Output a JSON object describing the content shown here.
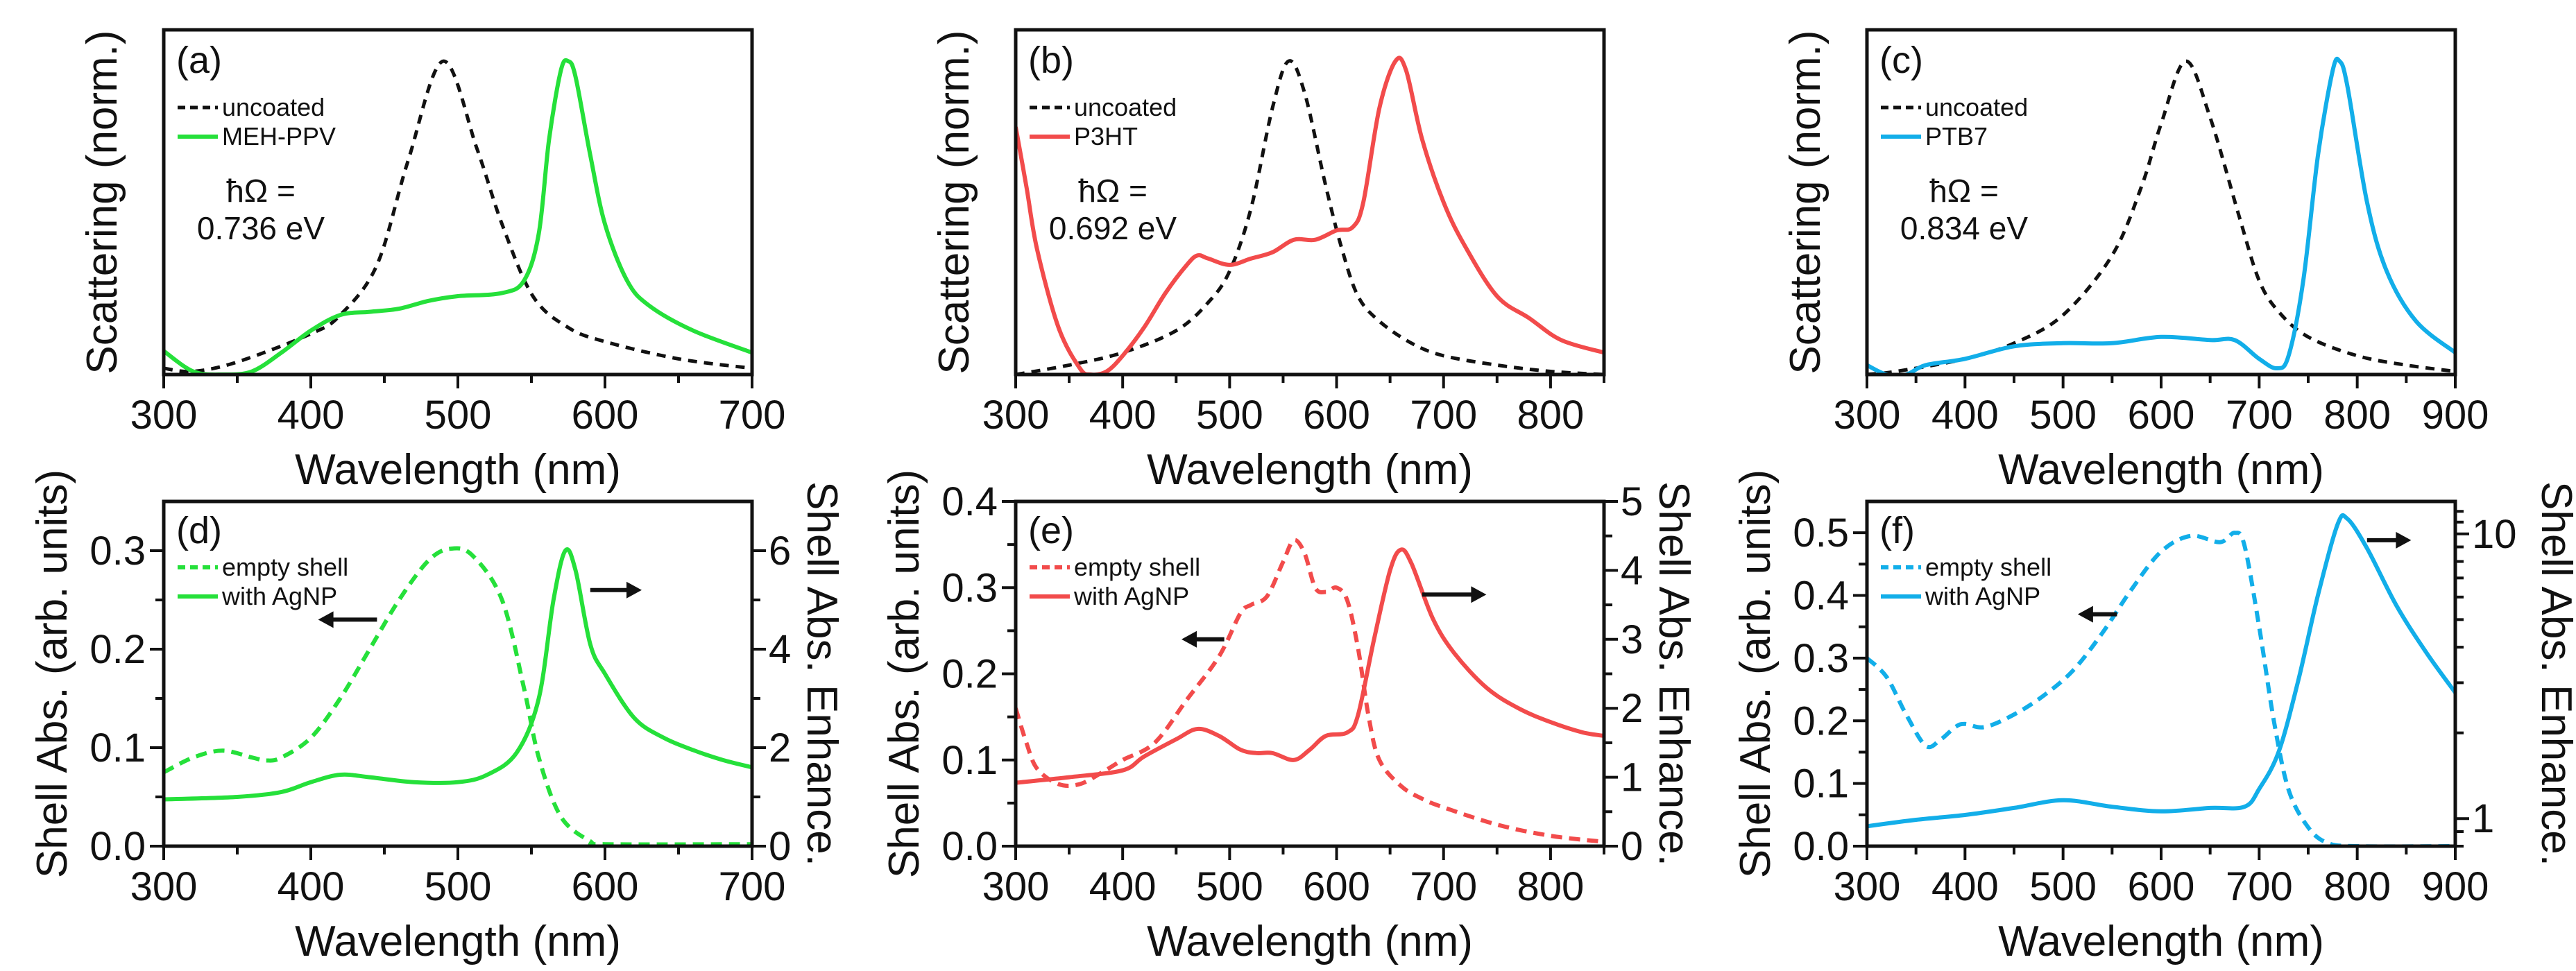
{
  "figure": {
    "colors": {
      "green": "#25e03a",
      "red": "#f24b4b",
      "blue": "#12aee9",
      "black": "#111111"
    }
  },
  "chart_data": [
    {
      "type": "line",
      "panel_label": "(a)",
      "xlabel": "Wavelength (nm)",
      "ylabel": "Scattering (norm.)",
      "xlim": [
        300,
        700
      ],
      "ylim": [
        0,
        1.1
      ],
      "xticks": [
        300,
        400,
        500,
        600,
        700
      ],
      "yticks": [],
      "annotations": [
        "ħΩ =",
        "0.736 eV"
      ],
      "series": [
        {
          "name": "uncoated",
          "axis": "left",
          "style": "dashed",
          "color": "#111111",
          "x": [
            300,
            320,
            350,
            400,
            420,
            445,
            466,
            490,
            513,
            530,
            551,
            575,
            600,
            650,
            700
          ],
          "y": [
            0.02,
            0.01,
            0.04,
            0.13,
            0.19,
            0.35,
            0.68,
            1.0,
            0.72,
            0.48,
            0.25,
            0.15,
            0.105,
            0.05,
            0.02
          ]
        },
        {
          "name": "MEH-PPV",
          "axis": "left",
          "style": "solid",
          "color": "#25e03a",
          "x": [
            300,
            320,
            340,
            360,
            380,
            400,
            420,
            440,
            460,
            480,
            500,
            530,
            545,
            555,
            562,
            570,
            575,
            580,
            590,
            600,
            615,
            630,
            660,
            700
          ],
          "y": [
            0.075,
            0.01,
            0.0,
            0.01,
            0.07,
            0.14,
            0.19,
            0.2,
            0.21,
            0.235,
            0.25,
            0.26,
            0.3,
            0.45,
            0.75,
            0.97,
            1.0,
            0.95,
            0.7,
            0.48,
            0.3,
            0.22,
            0.14,
            0.07
          ]
        }
      ]
    },
    {
      "type": "line",
      "panel_label": "(b)",
      "xlabel": "Wavelength (nm)",
      "ylabel": "Scattering (norm.)",
      "xlim": [
        300,
        850
      ],
      "ylim": [
        0,
        1.1
      ],
      "xticks": [
        300,
        400,
        500,
        600,
        700,
        800
      ],
      "yticks": [],
      "annotations": [
        "ħΩ =",
        "0.692 eV"
      ],
      "series": [
        {
          "name": "uncoated",
          "axis": "left",
          "style": "dashed",
          "color": "#111111",
          "x": [
            300,
            350,
            400,
            450,
            480,
            500,
            520,
            540,
            555,
            570,
            590,
            605,
            620,
            640,
            670,
            700,
            750,
            800,
            850
          ],
          "y": [
            0.0,
            0.03,
            0.07,
            0.14,
            0.23,
            0.33,
            0.53,
            0.85,
            1.0,
            0.9,
            0.6,
            0.4,
            0.25,
            0.17,
            0.1,
            0.06,
            0.03,
            0.01,
            0.0
          ]
        },
        {
          "name": "P3HT",
          "axis": "left",
          "style": "solid",
          "color": "#f24b4b",
          "x": [
            300,
            310,
            320,
            340,
            360,
            370,
            385,
            400,
            420,
            440,
            460,
            470,
            480,
            500,
            520,
            540,
            560,
            580,
            600,
            615,
            625,
            640,
            655,
            665,
            680,
            700,
            720,
            750,
            780,
            810,
            850
          ],
          "y": [
            0.79,
            0.6,
            0.4,
            0.15,
            0.02,
            0.0,
            0.01,
            0.06,
            0.15,
            0.26,
            0.35,
            0.38,
            0.37,
            0.35,
            0.37,
            0.39,
            0.43,
            0.43,
            0.46,
            0.47,
            0.55,
            0.85,
            1.0,
            0.97,
            0.75,
            0.55,
            0.41,
            0.25,
            0.18,
            0.11,
            0.07
          ]
        }
      ]
    },
    {
      "type": "line",
      "panel_label": "(c)",
      "xlabel": "Wavelength (nm)",
      "ylabel": "Scattering (norm.)",
      "xlim": [
        300,
        900
      ],
      "ylim": [
        0,
        1.1
      ],
      "xticks": [
        300,
        400,
        500,
        600,
        700,
        800,
        900
      ],
      "yticks": [],
      "annotations": [
        "ħΩ =",
        "0.834 eV"
      ],
      "series": [
        {
          "name": "uncoated",
          "axis": "left",
          "style": "dashed",
          "color": "#111111",
          "x": [
            300,
            330,
            400,
            450,
            500,
            550,
            580,
            600,
            625,
            650,
            680,
            700,
            720,
            750,
            800,
            850,
            900
          ],
          "y": [
            0.0,
            0.01,
            0.05,
            0.1,
            0.19,
            0.38,
            0.6,
            0.8,
            1.0,
            0.82,
            0.5,
            0.3,
            0.2,
            0.12,
            0.06,
            0.03,
            0.01
          ]
        },
        {
          "name": "PTB7",
          "axis": "left",
          "style": "solid",
          "color": "#12aee9",
          "x": [
            300,
            320,
            340,
            360,
            400,
            450,
            500,
            550,
            600,
            650,
            675,
            700,
            718,
            730,
            745,
            760,
            775,
            782,
            790,
            810,
            830,
            860,
            900
          ],
          "y": [
            0.03,
            0.0,
            0.0,
            0.03,
            0.05,
            0.09,
            0.1,
            0.1,
            0.12,
            0.11,
            0.11,
            0.05,
            0.02,
            0.06,
            0.3,
            0.7,
            0.97,
            1.0,
            0.92,
            0.55,
            0.33,
            0.17,
            0.07
          ]
        }
      ]
    },
    {
      "type": "line",
      "panel_label": "(d)",
      "xlabel": "Wavelength (nm)",
      "ylabel": "Shell Abs. (arb. units)",
      "y2label": "Shell Abs. Enhance.",
      "xlim": [
        300,
        700
      ],
      "ylim": [
        0,
        0.35
      ],
      "y2lim": [
        0,
        7
      ],
      "y2scale": "linear",
      "xticks": [
        300,
        400,
        500,
        600,
        700
      ],
      "yticks": [
        "0.0",
        "0.1",
        "0.2",
        "0.3"
      ],
      "y2ticks": [
        "0",
        "2",
        "4",
        "6"
      ],
      "arrows": [
        {
          "direction": "left",
          "refers_to": "left axis"
        },
        {
          "direction": "right",
          "refers_to": "right axis"
        }
      ],
      "series": [
        {
          "name": "empty shell",
          "axis": "left",
          "style": "dashed",
          "color": "#25e03a",
          "x": [
            300,
            320,
            340,
            360,
            370,
            380,
            400,
            420,
            440,
            460,
            480,
            495,
            510,
            530,
            545,
            555,
            570,
            590,
            600,
            700
          ],
          "y": [
            0.075,
            0.09,
            0.097,
            0.09,
            0.087,
            0.09,
            0.11,
            0.15,
            0.2,
            0.25,
            0.29,
            0.302,
            0.295,
            0.25,
            0.16,
            0.09,
            0.03,
            0.005,
            0.002,
            0.002
          ]
        },
        {
          "name": "with AgNP",
          "axis": "right",
          "style": "solid",
          "color": "#25e03a",
          "x": [
            300,
            350,
            380,
            400,
            420,
            440,
            470,
            500,
            520,
            540,
            555,
            565,
            573,
            580,
            590,
            600,
            620,
            640,
            660,
            680,
            700
          ],
          "y": [
            0.95,
            1.0,
            1.1,
            1.3,
            1.45,
            1.4,
            1.3,
            1.3,
            1.45,
            1.9,
            3.0,
            5.0,
            6.0,
            5.6,
            4.1,
            3.5,
            2.6,
            2.2,
            1.95,
            1.75,
            1.6
          ]
        }
      ]
    },
    {
      "type": "line",
      "panel_label": "(e)",
      "xlabel": "Wavelength (nm)",
      "ylabel": "Shell Abs. (arb. units)",
      "y2label": "Shell Abs. Enhance.",
      "xlim": [
        300,
        850
      ],
      "ylim": [
        0,
        0.4
      ],
      "y2lim": [
        0,
        5
      ],
      "y2scale": "linear",
      "xticks": [
        300,
        400,
        500,
        600,
        700,
        800
      ],
      "yticks": [
        "0.0",
        "0.1",
        "0.2",
        "0.3",
        "0.4"
      ],
      "y2ticks": [
        "0",
        "1",
        "2",
        "3",
        "4",
        "5"
      ],
      "arrows": [
        {
          "direction": "left",
          "refers_to": "left axis"
        },
        {
          "direction": "right",
          "refers_to": "right axis"
        }
      ],
      "series": [
        {
          "name": "empty shell",
          "axis": "left",
          "style": "dashed",
          "color": "#f24b4b",
          "x": [
            300,
            310,
            320,
            340,
            360,
            380,
            400,
            430,
            460,
            490,
            510,
            520,
            535,
            550,
            560,
            570,
            580,
            590,
            600,
            610,
            620,
            630,
            640,
            660,
            680,
            700,
            750,
            800,
            850
          ],
          "y": [
            0.16,
            0.12,
            0.09,
            0.072,
            0.072,
            0.085,
            0.1,
            0.12,
            0.17,
            0.22,
            0.27,
            0.28,
            0.29,
            0.33,
            0.355,
            0.34,
            0.3,
            0.295,
            0.3,
            0.285,
            0.23,
            0.15,
            0.1,
            0.07,
            0.055,
            0.045,
            0.025,
            0.012,
            0.005
          ]
        },
        {
          "name": "with AgNP",
          "axis": "right",
          "style": "solid",
          "color": "#f24b4b",
          "x": [
            300,
            350,
            400,
            420,
            450,
            470,
            490,
            510,
            525,
            540,
            560,
            575,
            590,
            610,
            620,
            635,
            650,
            660,
            670,
            690,
            710,
            740,
            770,
            800,
            830,
            850
          ],
          "y": [
            0.92,
            1.0,
            1.1,
            1.3,
            1.55,
            1.7,
            1.6,
            1.4,
            1.35,
            1.35,
            1.25,
            1.4,
            1.6,
            1.65,
            1.9,
            3.0,
            4.0,
            4.3,
            4.1,
            3.3,
            2.8,
            2.3,
            2.0,
            1.8,
            1.65,
            1.6
          ]
        }
      ]
    },
    {
      "type": "line",
      "panel_label": "(f)",
      "xlabel": "Wavelength (nm)",
      "ylabel": "Shell Abs. (arb. units)",
      "y2label": "Shell Abs. Enhance.",
      "xlim": [
        300,
        900
      ],
      "ylim": [
        0,
        0.55
      ],
      "y2lim": [
        0.8,
        13
      ],
      "y2scale": "log",
      "xticks": [
        300,
        400,
        500,
        600,
        700,
        800,
        900
      ],
      "yticks": [
        "0.0",
        "0.1",
        "0.2",
        "0.3",
        "0.4",
        "0.5"
      ],
      "y2ticks": [
        "1",
        "10"
      ],
      "arrows": [
        {
          "direction": "left",
          "refers_to": "left axis"
        },
        {
          "direction": "right",
          "refers_to": "right axis"
        }
      ],
      "series": [
        {
          "name": "empty shell",
          "axis": "left",
          "style": "dashed",
          "color": "#12aee9",
          "x": [
            300,
            320,
            340,
            360,
            375,
            390,
            400,
            420,
            450,
            480,
            510,
            540,
            570,
            600,
            630,
            660,
            675,
            685,
            700,
            715,
            730,
            750,
            770,
            800,
            900
          ],
          "y": [
            0.3,
            0.27,
            0.21,
            0.16,
            0.17,
            0.19,
            0.195,
            0.19,
            0.21,
            0.24,
            0.28,
            0.34,
            0.41,
            0.47,
            0.495,
            0.485,
            0.5,
            0.48,
            0.35,
            0.2,
            0.09,
            0.03,
            0.005,
            0.0,
            0.0
          ]
        },
        {
          "name": "with AgNP",
          "axis": "right",
          "style": "solid",
          "color": "#12aee9",
          "x": [
            300,
            350,
            400,
            450,
            500,
            550,
            600,
            650,
            685,
            700,
            720,
            740,
            760,
            780,
            790,
            810,
            840,
            870,
            900
          ],
          "y": [
            0.94,
            0.99,
            1.03,
            1.09,
            1.16,
            1.1,
            1.06,
            1.09,
            1.1,
            1.27,
            1.72,
            3.07,
            6.1,
            10.8,
            11.3,
            8.9,
            5.6,
            3.85,
            2.77
          ]
        }
      ]
    }
  ]
}
